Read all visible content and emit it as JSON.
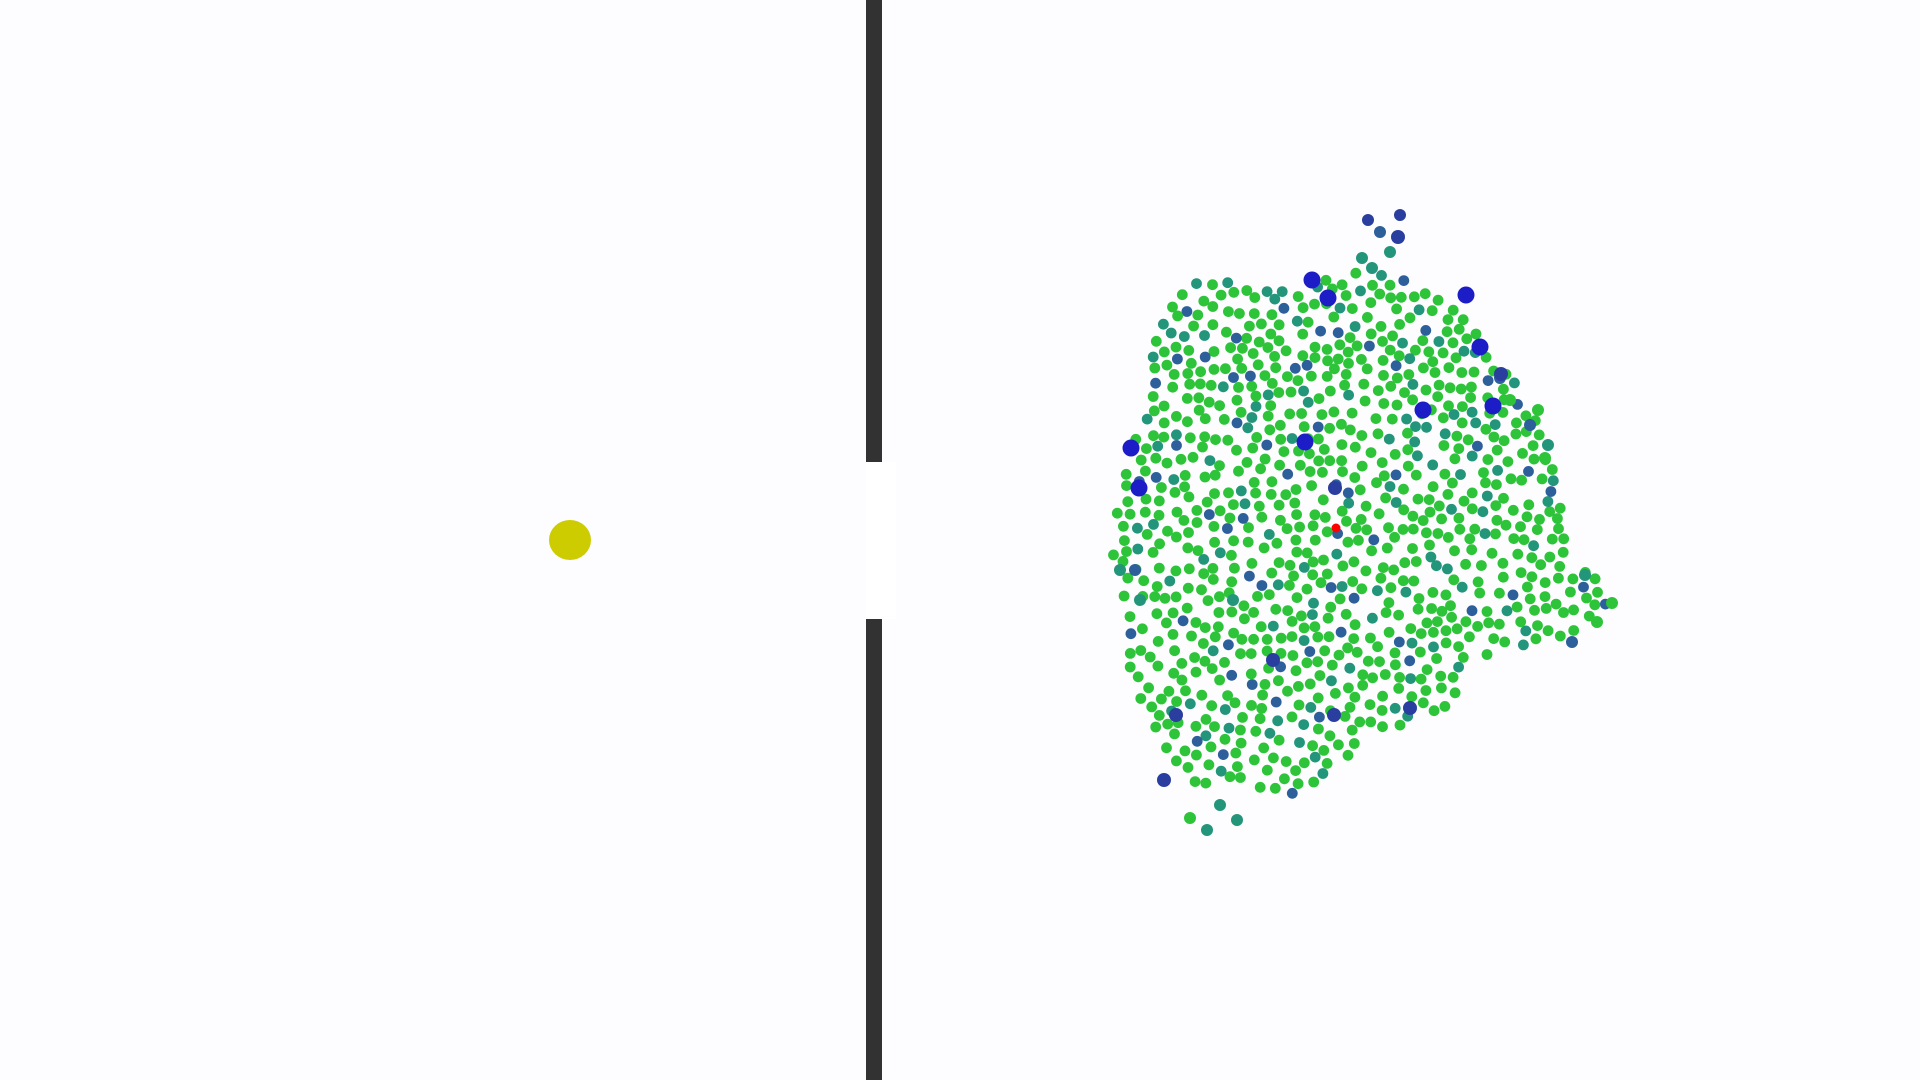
{
  "colors": {
    "background": "#fdfcfe",
    "wall": "#323232",
    "target": "#cccc00",
    "agent_leader": "#ff0000",
    "agent_green": "#2ec43a",
    "agent_teal": "#23957a",
    "agent_slate": "#2d5f9a",
    "agent_navy": "#2a3ea0",
    "agent_blue": "#1d1dc8"
  },
  "scene": {
    "walls": [
      "top",
      "bottom"
    ],
    "target_shape": "circle",
    "swarm_shape": "dense cluster",
    "leader_count": 1,
    "follower_count": 1100
  }
}
